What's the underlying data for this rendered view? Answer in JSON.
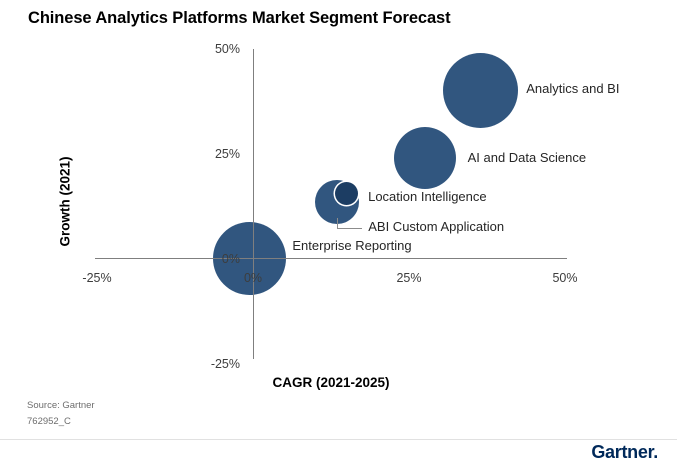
{
  "title": "Chinese Analytics Platforms Market Segment Forecast",
  "footer": {
    "source_line1": "Source: Gartner",
    "source_line2": "762952_C",
    "logo_text": "Gartner."
  },
  "colors": {
    "bubble_primary": "#31567F",
    "bubble_dark": "#1C3D63",
    "axis_line": "#7F7F7F",
    "leader_line": "#8C8C8C",
    "logo_navy": "#00295A",
    "divider": "#E1E1E1"
  },
  "chart_data": {
    "type": "scatter",
    "subtype": "bubble",
    "title": "Chinese Analytics Platforms Market Segment Forecast",
    "xlabel": "CAGR (2021-2025)",
    "ylabel": "Growth (2021)",
    "xlim": [
      -25,
      50
    ],
    "ylim": [
      -25,
      50
    ],
    "grid": false,
    "legend": "none",
    "x_ticks": [
      {
        "value": -25,
        "label": "-25%"
      },
      {
        "value": 0,
        "label": "0%"
      },
      {
        "value": 25,
        "label": "25%"
      },
      {
        "value": 50,
        "label": "50%"
      }
    ],
    "y_ticks": [
      {
        "value": 50,
        "label": "50%"
      },
      {
        "value": 25,
        "label": "25%"
      },
      {
        "value": 0,
        "label": "0%"
      },
      {
        "value": -25,
        "label": "-25%"
      }
    ],
    "points": [
      {
        "label": "Analytics and BI",
        "cagr_pct": 36.5,
        "growth_pct": 40,
        "radius_px": 37.5,
        "color_variant": "primary"
      },
      {
        "label": "AI and Data Science",
        "cagr_pct": 27.5,
        "growth_pct": 24,
        "radius_px": 31,
        "color_variant": "primary"
      },
      {
        "label": "Location Intelligence",
        "cagr_pct": 15,
        "growth_pct": 15.5,
        "radius_px": 11.5,
        "color_variant": "dark",
        "white_outline": true
      },
      {
        "label": "ABI Custom Application",
        "cagr_pct": 13.5,
        "growth_pct": 13.5,
        "radius_px": 22,
        "color_variant": "primary",
        "leader_line": true
      },
      {
        "label": "Enterprise Reporting",
        "cagr_pct": -0.5,
        "growth_pct": 0,
        "radius_px": 36.5,
        "color_variant": "primary"
      }
    ]
  }
}
